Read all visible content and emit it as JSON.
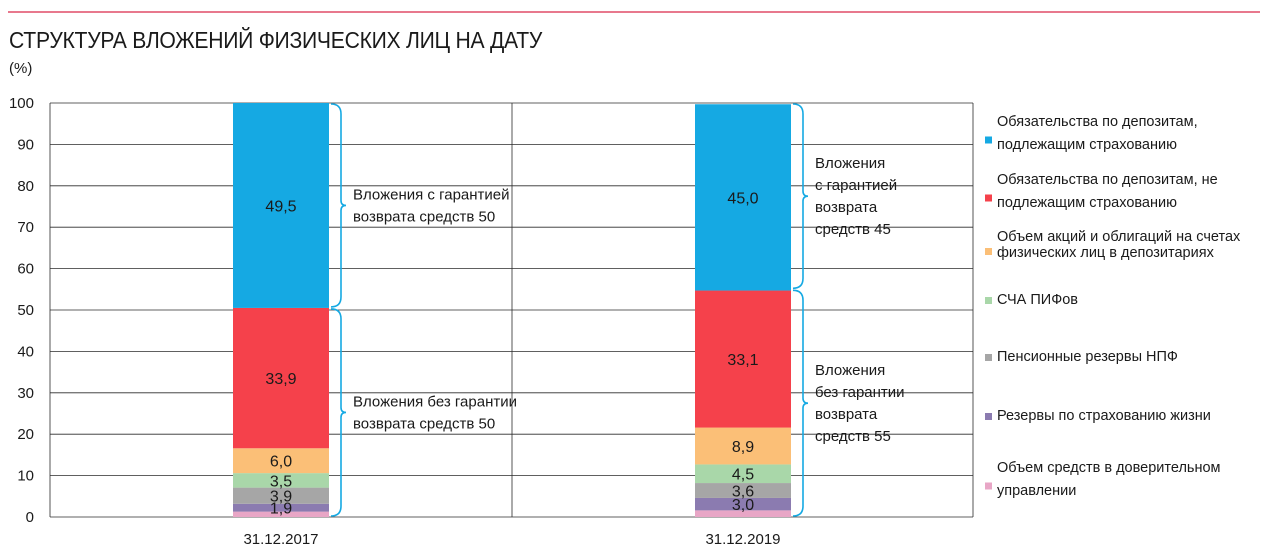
{
  "title": "СТРУКТУРА ВЛОЖЕНИЙ ФИЗИЧЕСКИХ ЛИЦ НА ДАТУ",
  "unit": "(%)",
  "chart_data": {
    "type": "bar",
    "stacked": true,
    "categories": [
      "31.12.2017",
      "31.12.2019"
    ],
    "ylim": [
      0,
      100
    ],
    "yticks": [
      "0",
      "10",
      "20",
      "30",
      "40",
      "50",
      "60",
      "70",
      "80",
      "90",
      "100"
    ],
    "grid": true,
    "legend_position": "right",
    "series": [
      {
        "name": "Объем средств в доверительном управлении",
        "color": "#e8a6c6",
        "values": [
          1.3,
          1.6
        ],
        "labels": [
          "",
          ""
        ]
      },
      {
        "name": "Резервы по страхованию жизни",
        "color": "#8b7bb0",
        "values": [
          1.9,
          3.0
        ],
        "labels": [
          "1,9",
          "3,0"
        ]
      },
      {
        "name": "Пенсионные резервы НПФ",
        "color": "#a6a6a6",
        "values": [
          3.9,
          3.6
        ],
        "labels": [
          "3,9",
          "3,6"
        ]
      },
      {
        "name": "СЧА ПИФов",
        "color": "#a9d7a9",
        "values": [
          3.5,
          4.5
        ],
        "labels": [
          "3,5",
          "4,5"
        ]
      },
      {
        "name": "Объем акций и облигаций на счетах физических лиц в депозитариях",
        "color": "#fbbf77",
        "values": [
          6.0,
          8.9
        ],
        "labels": [
          "6,0",
          "8,9"
        ]
      },
      {
        "name": "Обязательства по депозитам, не подлежащим страхованию",
        "color": "#f5414b",
        "values": [
          33.9,
          33.1
        ],
        "labels": [
          "33,9",
          "33,1"
        ]
      },
      {
        "name": "Обязательства по депозитам, подлежащим страхованию",
        "color": "#15a9e3",
        "values": [
          49.5,
          45.0
        ],
        "labels": [
          "49,5",
          "45,0"
        ]
      }
    ],
    "legend": [
      {
        "lines": [
          "Обязательства по депозитам,",
          "подлежащим страхованию"
        ],
        "color": "#15a9e3"
      },
      {
        "lines": [
          "Обязательства по депозитам, не",
          "подлежащим страхованию"
        ],
        "color": "#f5414b"
      },
      {
        "lines": [
          "Объем акций и облигаций на счетах",
          "физических лиц в депозитариях"
        ],
        "color": "#fbbf77"
      },
      {
        "lines": [
          "СЧА ПИФов"
        ],
        "color": "#a9d7a9"
      },
      {
        "lines": [
          "Пенсионные резервы НПФ"
        ],
        "color": "#a6a6a6"
      },
      {
        "lines": [
          "Резервы по страхованию жизни"
        ],
        "color": "#8b7bb0"
      },
      {
        "lines": [
          "Объем средств в доверительном",
          "управлении"
        ],
        "color": "#e8a6c6"
      }
    ],
    "annotations": [
      {
        "bar": 0,
        "from": 50.5,
        "to": 100,
        "lines": [
          "Вложения с гарантией",
          "возврата средств 50"
        ]
      },
      {
        "bar": 0,
        "from": 0,
        "to": 50.5,
        "lines": [
          "Вложения без гарантии",
          "возврата средств 50"
        ]
      },
      {
        "bar": 1,
        "from": 55.0,
        "to": 100,
        "lines": [
          "Вложения",
          "с гарантией",
          "возврата",
          "средств 45"
        ]
      },
      {
        "bar": 1,
        "from": 0,
        "to": 55.0,
        "lines": [
          "Вложения",
          "без гарантии",
          "возврата",
          "средств 55"
        ]
      }
    ],
    "bracket_color": "#15a9e3"
  }
}
